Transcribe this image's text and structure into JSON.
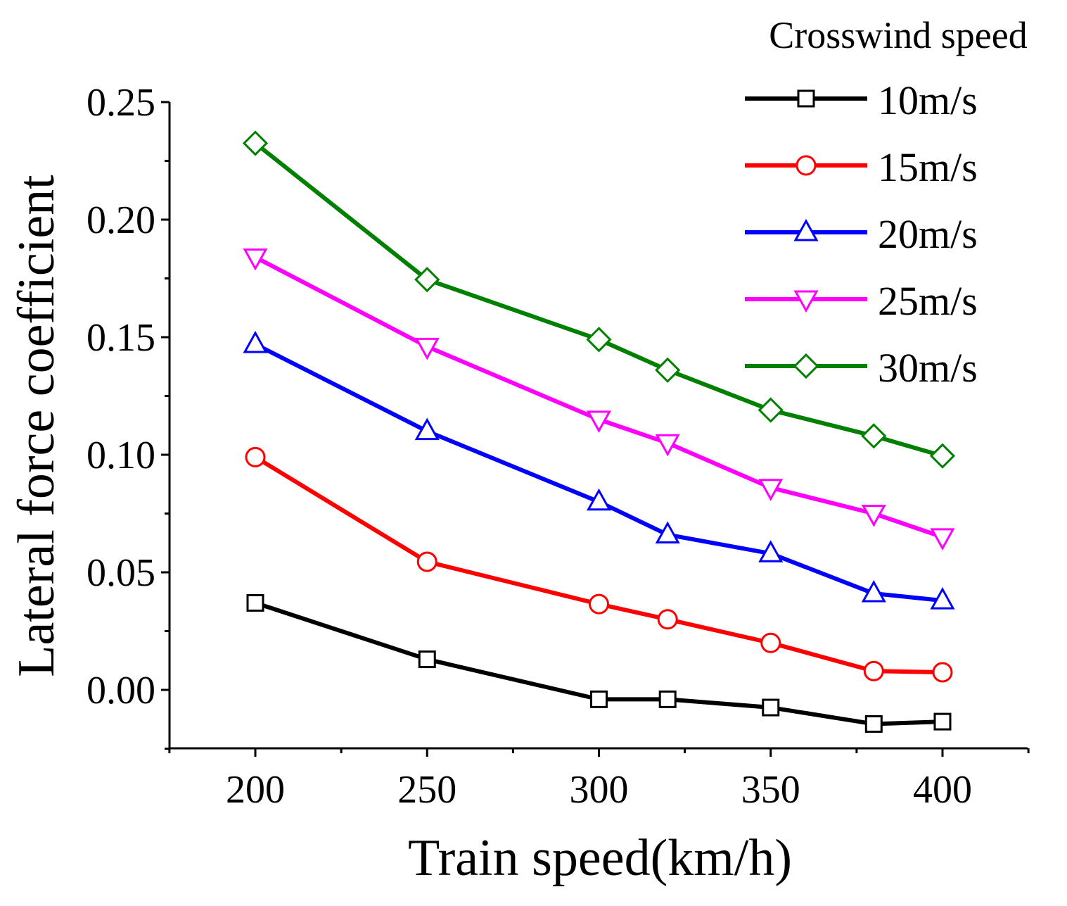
{
  "chart_data": {
    "type": "line",
    "title": "",
    "xlabel": "Train speed(km/h)",
    "ylabel": "Lateral force coefficient",
    "xlim": [
      175,
      425
    ],
    "ylim": [
      -0.025,
      0.25
    ],
    "xticks": [
      200,
      250,
      300,
      350,
      400
    ],
    "xtick_labels": [
      "200",
      "250",
      "300",
      "350",
      "400"
    ],
    "yticks": [
      0.0,
      0.05,
      0.1,
      0.15,
      0.2,
      0.25
    ],
    "ytick_labels": [
      "0.00",
      "0.05",
      "0.10",
      "0.15",
      "0.20",
      "0.25"
    ],
    "grid": false,
    "legend": {
      "title": "Crosswind speed",
      "placement": "top-right"
    },
    "x": [
      200,
      250,
      300,
      320,
      350,
      380,
      400
    ],
    "series": [
      {
        "name": "10m/s",
        "color": "#000000",
        "marker": "square",
        "values": [
          0.037,
          0.013,
          -0.004,
          -0.004,
          -0.0075,
          -0.0145,
          -0.0135
        ]
      },
      {
        "name": "15m/s",
        "color": "#ff0000",
        "marker": "circle",
        "values": [
          0.099,
          0.0545,
          0.0365,
          0.03,
          0.02,
          0.008,
          0.0075
        ]
      },
      {
        "name": "20m/s",
        "color": "#0000ff",
        "marker": "triangle-up",
        "values": [
          0.147,
          0.11,
          0.08,
          0.066,
          0.058,
          0.041,
          0.038
        ]
      },
      {
        "name": "25m/s",
        "color": "#ff00ff",
        "marker": "triangle-down",
        "values": [
          0.184,
          0.146,
          0.115,
          0.105,
          0.086,
          0.075,
          0.065
        ]
      },
      {
        "name": "30m/s",
        "color": "#008000",
        "marker": "diamond",
        "values": [
          0.2325,
          0.1745,
          0.149,
          0.136,
          0.119,
          0.108,
          0.0995
        ]
      }
    ]
  }
}
